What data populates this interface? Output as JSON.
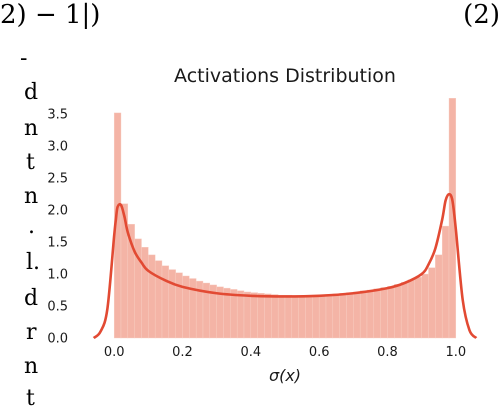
{
  "paper": {
    "equation_fragment": "2) − 1|)",
    "equation_number": "(2)",
    "left_column_fragments": [
      "-",
      "d",
      "n",
      "t",
      "n",
      ".",
      "l.",
      "d",
      "r",
      "",
      "n",
      "t"
    ]
  },
  "chart_data": {
    "type": "histogram",
    "title": "Activations Distribution",
    "xlabel": "σ(x)",
    "ylabel": "",
    "xlim": [
      -0.1,
      1.1
    ],
    "ylim": [
      0,
      3.8
    ],
    "x_ticks": [
      "0.0",
      "0.2",
      "0.4",
      "0.6",
      "0.8",
      "1.0"
    ],
    "y_ticks": [
      "0.0",
      "0.5",
      "1.0",
      "1.5",
      "2.0",
      "2.5",
      "3.0",
      "3.5"
    ],
    "grid": false,
    "colors": {
      "bars": "#f4b4a6",
      "kde": "#e24a33",
      "text": "#1a1a1a"
    },
    "bins": {
      "start": 0.0,
      "width": 0.02,
      "values": [
        3.52,
        2.1,
        1.78,
        1.55,
        1.42,
        1.3,
        1.21,
        1.13,
        1.07,
        1.02,
        0.97,
        0.93,
        0.89,
        0.86,
        0.83,
        0.8,
        0.78,
        0.76,
        0.74,
        0.72,
        0.71,
        0.7,
        0.69,
        0.68,
        0.67,
        0.67,
        0.66,
        0.66,
        0.66,
        0.67,
        0.67,
        0.68,
        0.69,
        0.7,
        0.71,
        0.72,
        0.74,
        0.75,
        0.77,
        0.79,
        0.81,
        0.84,
        0.87,
        0.91,
        0.95,
        1.0,
        1.1,
        1.3,
        1.75,
        3.75
      ]
    },
    "kde": {
      "x": [
        -0.06,
        -0.04,
        -0.02,
        0.0,
        0.005,
        0.01,
        0.02,
        0.03,
        0.04,
        0.06,
        0.08,
        0.1,
        0.15,
        0.2,
        0.3,
        0.4,
        0.5,
        0.6,
        0.7,
        0.8,
        0.85,
        0.9,
        0.92,
        0.94,
        0.96,
        0.97,
        0.98,
        0.99,
        1.0,
        1.02,
        1.04,
        1.06
      ],
      "y": [
        0.0,
        0.1,
        0.45,
        1.6,
        1.85,
        2.05,
        2.08,
        1.9,
        1.65,
        1.35,
        1.18,
        1.05,
        0.9,
        0.8,
        0.7,
        0.66,
        0.65,
        0.66,
        0.7,
        0.78,
        0.86,
        1.0,
        1.15,
        1.4,
        1.85,
        2.15,
        2.25,
        2.15,
        1.7,
        0.6,
        0.12,
        0.0
      ]
    }
  }
}
